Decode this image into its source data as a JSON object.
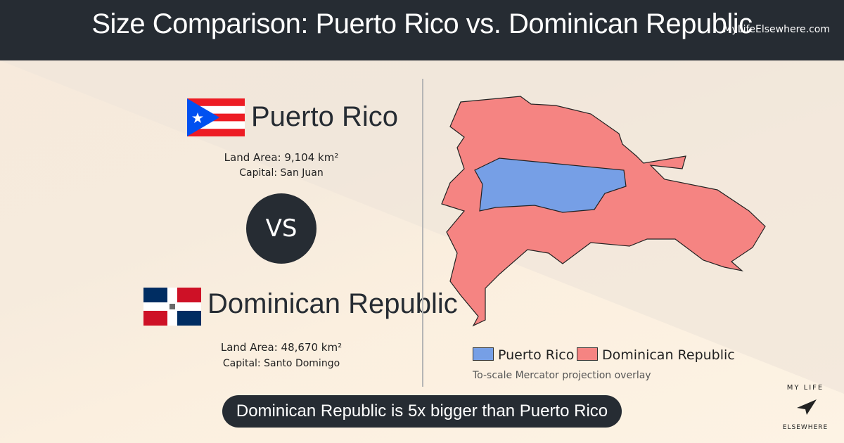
{
  "header": {
    "title": "Size Comparison: Puerto Rico vs. Dominican Republic",
    "site": "MyLifeElsewhere.com"
  },
  "countries": [
    {
      "name": "Puerto Rico",
      "land_area": "Land Area: 9,104 km²",
      "capital": "Capital: San Juan"
    },
    {
      "name": "Dominican Republic",
      "land_area": "Land Area: 48,670 km²",
      "capital": "Capital: Santo Domingo"
    }
  ],
  "vs": "VS",
  "legend": [
    "Puerto Rico",
    "Dominican Republic"
  ],
  "note": "To-scale Mercator projection overlay",
  "conclusion": "Dominican Republic is 5x bigger than Puerto Rico",
  "logo": {
    "top": "MY LIFE",
    "bottom": "ELSEWHERE"
  }
}
